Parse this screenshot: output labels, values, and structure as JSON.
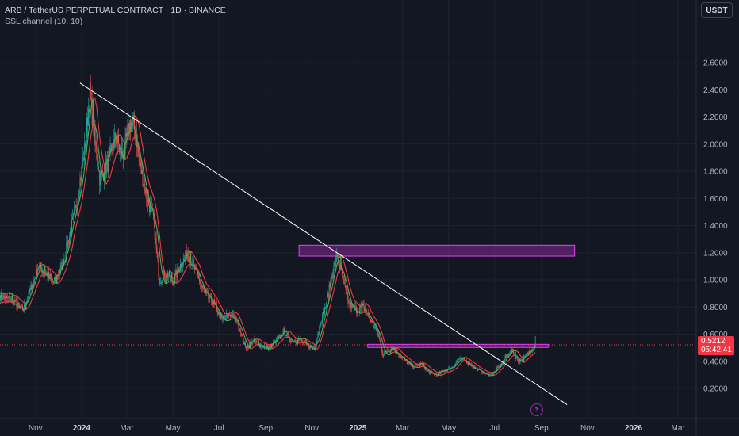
{
  "header": {
    "title": "ARB / TetherUS PERPETUAL CONTRACT · 1D · BINANCE",
    "indicator": "SSL channel (10, 10)"
  },
  "currency_button": {
    "label": "USDT"
  },
  "last_price": {
    "value": "0.5212",
    "countdown": "05:42:41",
    "price": 0.5212
  },
  "alert_icon": "lightning-bolt-icon",
  "colors": {
    "background": "#131722",
    "up": "#26a69a",
    "down": "#ef5350",
    "ssl_up": "#4caf50",
    "ssl_down": "#f23645",
    "trendline": "#ffffff",
    "zone_fill": "#9c27b0",
    "zone_border": "#e040fb",
    "price_line": "#f23645",
    "axis_text": "#b2b5be"
  },
  "chart_data": {
    "type": "candlestick",
    "y_axis": {
      "scale": "linear",
      "ticks": [
        "2.6000",
        "2.4000",
        "2.2000",
        "2.0000",
        "1.8000",
        "1.6000",
        "1.4000",
        "1.2000",
        "1.0000",
        "0.8000",
        "0.6000",
        "0.4000",
        "0.2000"
      ],
      "tick_values": [
        2.6,
        2.4,
        2.2,
        2.0,
        1.8,
        1.6,
        1.4,
        1.2,
        1.0,
        0.8,
        0.6,
        0.4,
        0.2
      ],
      "range": [
        0.08,
        2.7
      ]
    },
    "x_axis": {
      "range": [
        "2023-09-15",
        "2026-03-25"
      ],
      "ticks": [
        {
          "label": "Nov",
          "date": "2023-11-01",
          "bold": false
        },
        {
          "label": "2024",
          "date": "2024-01-01",
          "bold": true
        },
        {
          "label": "Mar",
          "date": "2024-03-01",
          "bold": false
        },
        {
          "label": "May",
          "date": "2024-05-01",
          "bold": false
        },
        {
          "label": "Jul",
          "date": "2024-07-01",
          "bold": false
        },
        {
          "label": "Sep",
          "date": "2024-09-01",
          "bold": false
        },
        {
          "label": "Nov",
          "date": "2024-11-01",
          "bold": false
        },
        {
          "label": "2025",
          "date": "2025-01-01",
          "bold": true
        },
        {
          "label": "Mar",
          "date": "2025-03-01",
          "bold": false
        },
        {
          "label": "May",
          "date": "2025-05-01",
          "bold": false
        },
        {
          "label": "Jul",
          "date": "2025-07-01",
          "bold": false
        },
        {
          "label": "Sep",
          "date": "2025-09-01",
          "bold": false
        },
        {
          "label": "Nov",
          "date": "2025-11-01",
          "bold": false
        },
        {
          "label": "2026",
          "date": "2026-01-01",
          "bold": true
        },
        {
          "label": "Mar",
          "date": "2026-03-01",
          "bold": false
        }
      ]
    },
    "price_path": [
      [
        "2023-09-15",
        0.88
      ],
      [
        "2023-10-01",
        0.85
      ],
      [
        "2023-10-15",
        0.78
      ],
      [
        "2023-10-25",
        0.92
      ],
      [
        "2023-11-05",
        1.1
      ],
      [
        "2023-11-15",
        1.05
      ],
      [
        "2023-11-25",
        0.98
      ],
      [
        "2023-12-05",
        1.08
      ],
      [
        "2023-12-15",
        1.3
      ],
      [
        "2023-12-25",
        1.55
      ],
      [
        "2024-01-05",
        1.95
      ],
      [
        "2024-01-12",
        2.38
      ],
      [
        "2024-01-18",
        2.05
      ],
      [
        "2024-01-25",
        1.75
      ],
      [
        "2024-02-05",
        1.85
      ],
      [
        "2024-02-15",
        2.05
      ],
      [
        "2024-02-25",
        1.9
      ],
      [
        "2024-03-05",
        2.15
      ],
      [
        "2024-03-12",
        2.1
      ],
      [
        "2024-03-20",
        1.8
      ],
      [
        "2024-03-28",
        1.6
      ],
      [
        "2024-04-05",
        1.45
      ],
      [
        "2024-04-13",
        1.0
      ],
      [
        "2024-04-22",
        1.05
      ],
      [
        "2024-05-01",
        0.98
      ],
      [
        "2024-05-10",
        1.1
      ],
      [
        "2024-05-20",
        1.2
      ],
      [
        "2024-06-01",
        1.05
      ],
      [
        "2024-06-12",
        0.9
      ],
      [
        "2024-06-25",
        0.82
      ],
      [
        "2024-07-05",
        0.7
      ],
      [
        "2024-07-15",
        0.75
      ],
      [
        "2024-07-25",
        0.7
      ],
      [
        "2024-08-05",
        0.5
      ],
      [
        "2024-08-15",
        0.55
      ],
      [
        "2024-08-25",
        0.52
      ],
      [
        "2024-09-05",
        0.5
      ],
      [
        "2024-09-15",
        0.55
      ],
      [
        "2024-09-25",
        0.62
      ],
      [
        "2024-10-05",
        0.55
      ],
      [
        "2024-10-15",
        0.56
      ],
      [
        "2024-10-25",
        0.52
      ],
      [
        "2024-11-05",
        0.5
      ],
      [
        "2024-11-12",
        0.68
      ],
      [
        "2024-11-20",
        0.82
      ],
      [
        "2024-11-28",
        1.05
      ],
      [
        "2024-12-05",
        1.18
      ],
      [
        "2024-12-10",
        1.05
      ],
      [
        "2024-12-20",
        0.82
      ],
      [
        "2024-12-30",
        0.78
      ],
      [
        "2025-01-08",
        0.8
      ],
      [
        "2025-01-18",
        0.7
      ],
      [
        "2025-01-28",
        0.6
      ],
      [
        "2025-02-03",
        0.45
      ],
      [
        "2025-02-15",
        0.5
      ],
      [
        "2025-02-25",
        0.45
      ],
      [
        "2025-03-05",
        0.4
      ],
      [
        "2025-03-15",
        0.36
      ],
      [
        "2025-03-25",
        0.38
      ],
      [
        "2025-04-05",
        0.32
      ],
      [
        "2025-04-15",
        0.3
      ],
      [
        "2025-04-25",
        0.33
      ],
      [
        "2025-05-05",
        0.35
      ],
      [
        "2025-05-15",
        0.42
      ],
      [
        "2025-05-25",
        0.4
      ],
      [
        "2025-06-05",
        0.35
      ],
      [
        "2025-06-15",
        0.32
      ],
      [
        "2025-06-22",
        0.3
      ],
      [
        "2025-07-01",
        0.32
      ],
      [
        "2025-07-10",
        0.38
      ],
      [
        "2025-07-18",
        0.45
      ],
      [
        "2025-07-25",
        0.48
      ],
      [
        "2025-08-01",
        0.4
      ],
      [
        "2025-08-08",
        0.42
      ],
      [
        "2025-08-15",
        0.46
      ],
      [
        "2025-08-20",
        0.5
      ],
      [
        "2025-08-24",
        0.52
      ]
    ],
    "trendline": {
      "from": [
        "2023-12-30",
        2.45
      ],
      "to": [
        "2025-10-05",
        0.08
      ]
    },
    "zones": [
      {
        "from": [
          "2024-10-15",
          1.255
        ],
        "to": [
          "2025-10-15",
          1.175
        ]
      },
      {
        "from": [
          "2025-01-14",
          0.525
        ],
        "to": [
          "2025-09-10",
          0.502
        ]
      }
    ],
    "last_price": 0.5212
  }
}
